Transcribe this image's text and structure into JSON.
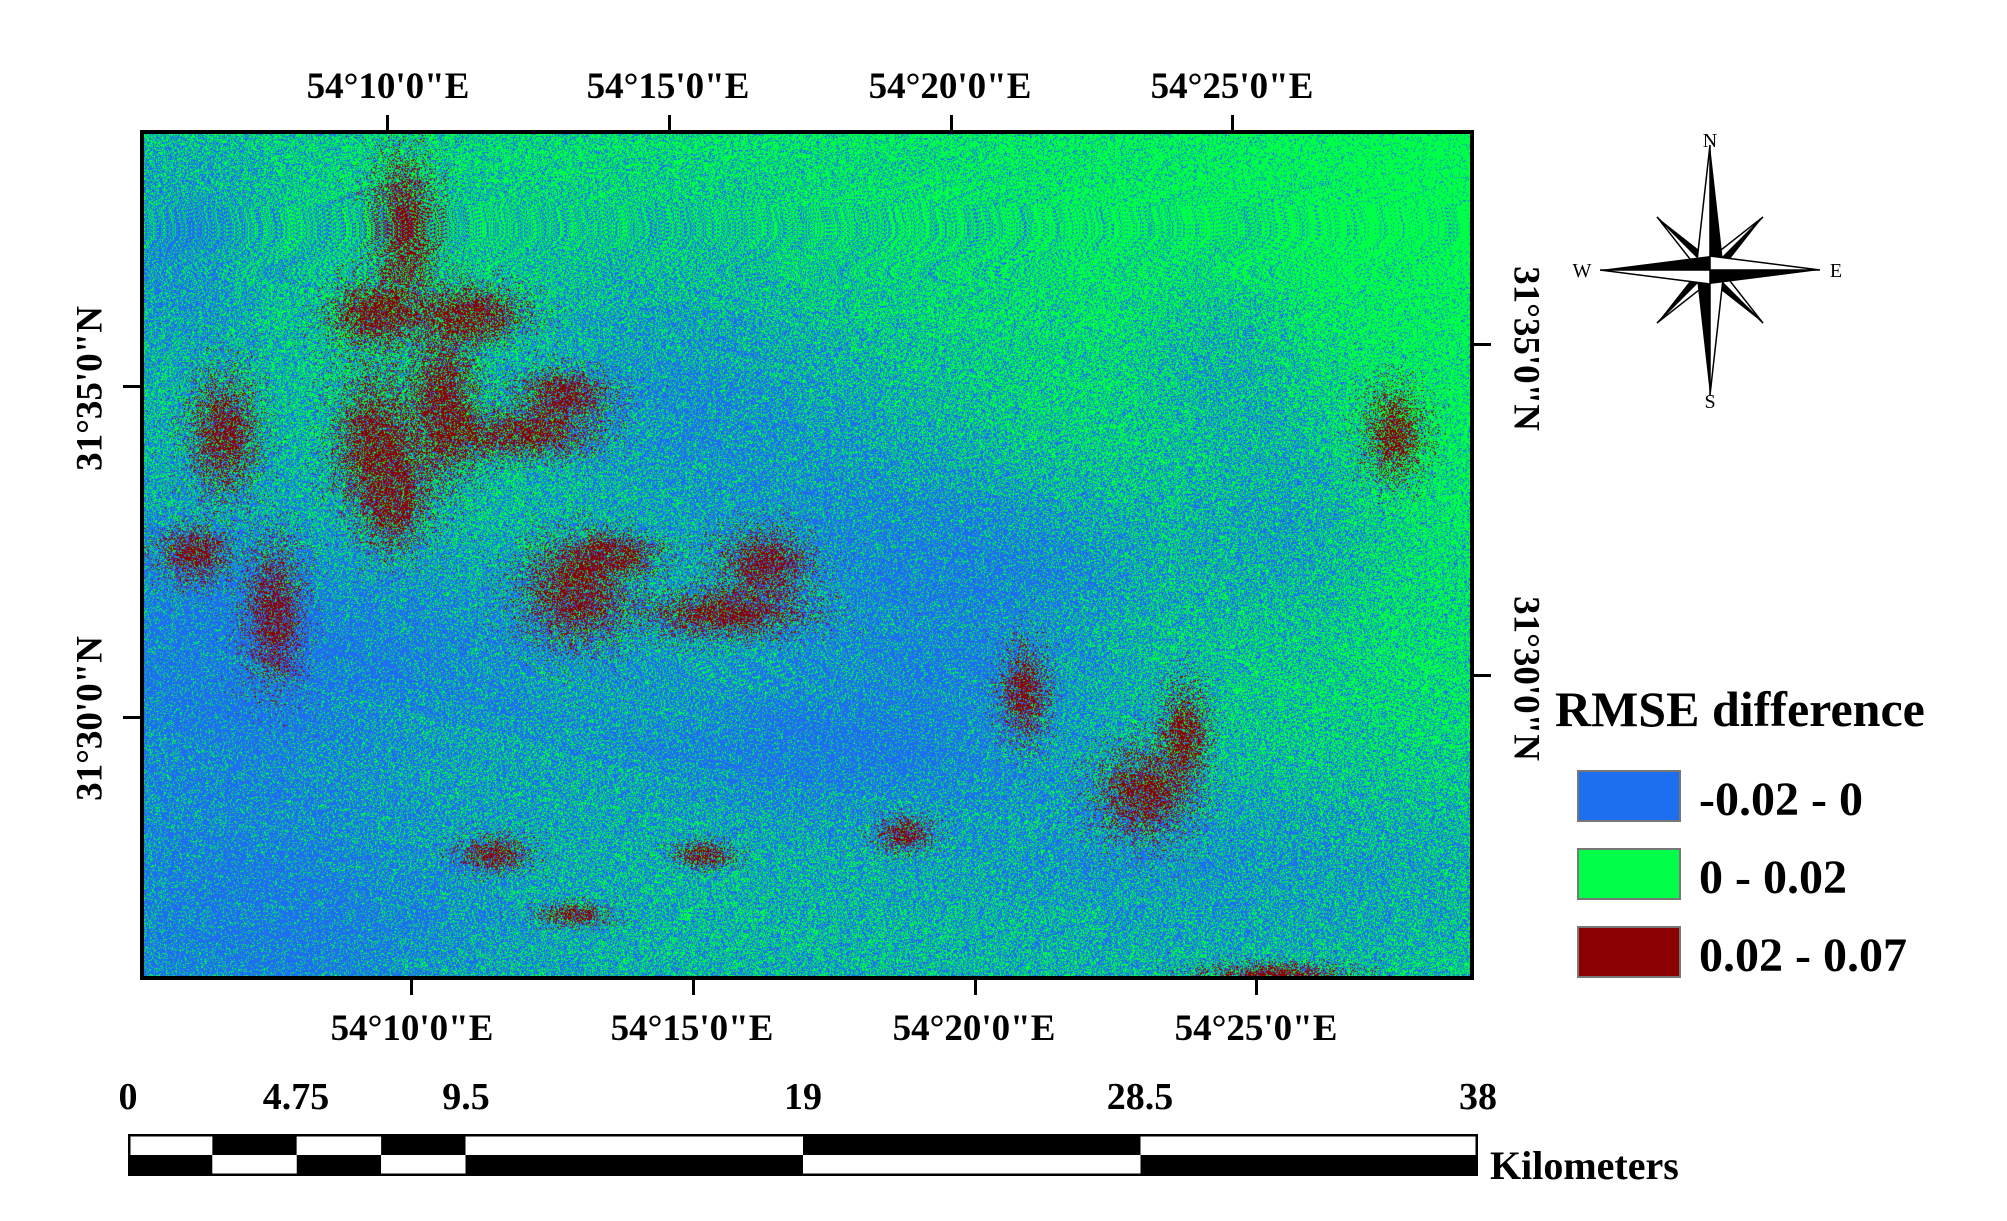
{
  "map": {
    "top_longitude_labels": [
      "54°10'0\"E",
      "54°15'0\"E",
      "54°20'0\"E",
      "54°25'0\"E"
    ],
    "bottom_longitude_labels": [
      "54°10'0\"E",
      "54°15'0\"E",
      "54°20'0\"E",
      "54°25'0\"E"
    ],
    "left_latitude_labels": [
      "31°35'0\"N",
      "31°30'0\"N"
    ],
    "right_latitude_labels": [
      "31°35'0\"N",
      "31°30'0\"N"
    ],
    "colors": {
      "low": "#1e6ef0",
      "mid": "#00ff48",
      "high": "#8b0000"
    }
  },
  "legend": {
    "title": "RMSE difference",
    "items": [
      {
        "label": "-0.02 - 0",
        "color": "#1e6ef0"
      },
      {
        "label": "0 - 0.02",
        "color": "#00ff48"
      },
      {
        "label": "0.02 - 0.07",
        "color": "#8b0000"
      }
    ]
  },
  "north_arrow": {
    "n": "N",
    "s": "S",
    "e": "E",
    "w": "W"
  },
  "scale": {
    "ticks": [
      "0",
      "4.75",
      "9.5",
      "19",
      "28.5",
      "38"
    ],
    "tick_values": [
      0,
      4.75,
      9.5,
      19,
      28.5,
      38
    ],
    "unit": "Kilometers"
  }
}
